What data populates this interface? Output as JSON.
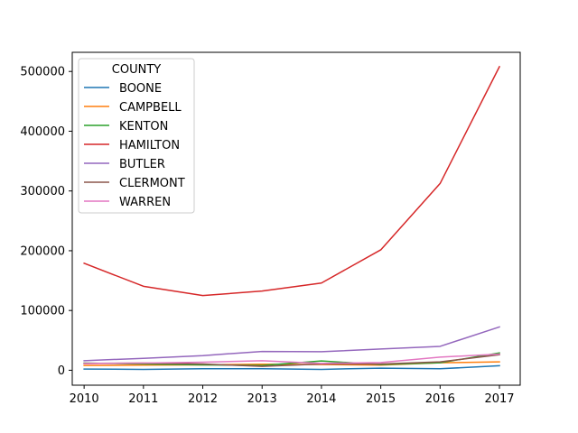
{
  "chart_data": {
    "type": "line",
    "x": [
      2010,
      2011,
      2012,
      2013,
      2014,
      2015,
      2016,
      2017
    ],
    "xticks": [
      "2010",
      "2011",
      "2012",
      "2013",
      "2014",
      "2015",
      "2016",
      "2017"
    ],
    "yticks": [
      0,
      100000,
      200000,
      300000,
      400000,
      500000
    ],
    "ytick_labels": [
      "0",
      "100000",
      "200000",
      "300000",
      "400000",
      "500000"
    ],
    "xlim": [
      2009.8,
      2017.35
    ],
    "ylim": [
      -25000,
      532000
    ],
    "grid": false,
    "legend": {
      "title": "COUNTY",
      "placement": "top-left"
    },
    "series": [
      {
        "name": "BOONE",
        "color": "#1f77b4",
        "values": [
          2000,
          1500,
          2500,
          2500,
          1500,
          3500,
          2500,
          7500
        ]
      },
      {
        "name": "CAMPBELL",
        "color": "#ff7f0e",
        "values": [
          8000,
          8500,
          9000,
          10000,
          9500,
          8500,
          12500,
          14000
        ]
      },
      {
        "name": "KENTON",
        "color": "#2ca02c",
        "values": [
          12000,
          10500,
          9000,
          8000,
          15500,
          9500,
          12500,
          29000
        ]
      },
      {
        "name": "HAMILTON",
        "color": "#d62728",
        "values": [
          179000,
          140500,
          125000,
          132500,
          146000,
          201500,
          312500,
          508000
        ]
      },
      {
        "name": "BUTLER",
        "color": "#9467bd",
        "values": [
          16000,
          20000,
          24500,
          31500,
          31000,
          35500,
          40000,
          72500
        ]
      },
      {
        "name": "CLERMONT",
        "color": "#8c564b",
        "values": [
          11500,
          12000,
          10500,
          6500,
          10500,
          10500,
          14000,
          26000
        ]
      },
      {
        "name": "WARREN",
        "color": "#e377c2",
        "values": [
          11000,
          12000,
          13500,
          16000,
          11500,
          13000,
          22000,
          27000
        ]
      }
    ]
  }
}
